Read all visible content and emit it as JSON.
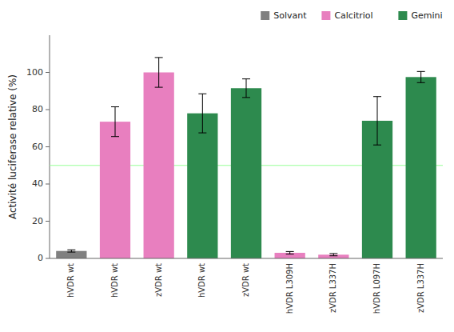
{
  "chart_data": {
    "type": "bar",
    "ylabel": "Activité luciferase relative (%)",
    "categories": [
      "hVDR wt",
      "hVDR wt",
      "zVDR wt",
      "hVDR wt",
      "zVDR wt",
      "hVDR L309H",
      "zVDR L337H",
      "hVDR L097H",
      "zVDR L337H"
    ],
    "series": [
      {
        "name": "Solvant",
        "color": "#808080",
        "values": [
          4.0,
          null,
          null,
          null,
          null,
          null,
          null,
          null,
          null
        ],
        "errors": [
          0.6,
          null,
          null,
          null,
          null,
          null,
          null,
          null,
          null
        ]
      },
      {
        "name": "Calcitriol",
        "color": "#e87fbf",
        "values": [
          null,
          73.5,
          100.0,
          null,
          null,
          3.0,
          2.0,
          null,
          null
        ],
        "errors": [
          null,
          8.0,
          8.0,
          null,
          null,
          0.7,
          0.6,
          null,
          null
        ]
      },
      {
        "name": "Gemini",
        "color": "#2d8a4e",
        "values": [
          null,
          null,
          null,
          78.0,
          91.5,
          null,
          null,
          74.0,
          97.5
        ],
        "errors": [
          null,
          null,
          null,
          10.5,
          5.0,
          null,
          null,
          13.0,
          3.0
        ]
      }
    ],
    "hlines": [
      50
    ],
    "ylim": [
      0,
      120
    ],
    "yticks": [
      0,
      20,
      40,
      60,
      80,
      100
    ],
    "grid": false,
    "legend": "upper right"
  }
}
